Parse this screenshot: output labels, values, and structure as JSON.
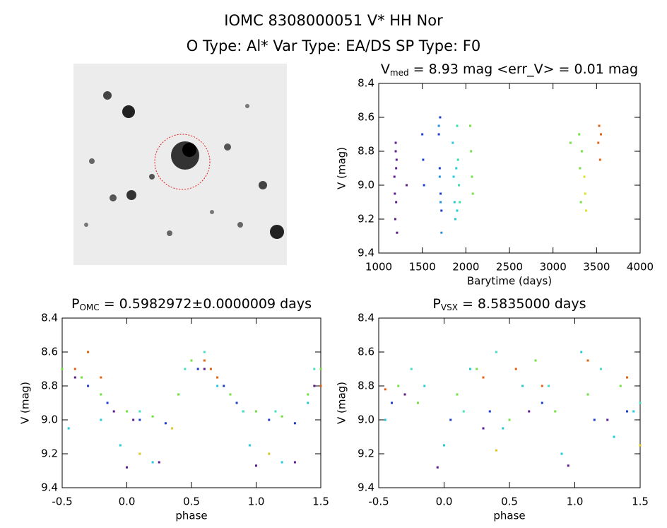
{
  "header": {
    "title": "IOMC 8308000051   V* HH Nor",
    "subtitle": "O Type: Al*  Var Type: EA/DS  SP Type: F0"
  },
  "chart_data": [
    {
      "type": "scatter",
      "title": {
        "main": "V",
        "sub": "med",
        "rest": " = 8.93 mag <err_V> = 0.01 mag"
      },
      "x_label": "Barytime (days)",
      "y_label": "V (mag)",
      "xlim": [
        1000,
        4000
      ],
      "xticks": [
        1000,
        1500,
        2000,
        2500,
        3000,
        3500,
        4000
      ],
      "ylim": [
        9.4,
        8.4
      ],
      "yticks": [
        8.4,
        8.6,
        8.8,
        {
          "value": 9,
          "label": "9.0"
        },
        9.2,
        9.4
      ],
      "series": [
        {
          "color": "#5a1a8a",
          "x": [
            1180,
            1185,
            1190,
            1195,
            1200,
            1205,
            1210,
            1200,
            1195,
            1320
          ],
          "values": [
            8.95,
            9.05,
            9.2,
            8.75,
            8.9,
            8.85,
            9.28,
            9.1,
            8.8,
            9.0
          ]
        },
        {
          "color": "#1a3cc8",
          "x": [
            1500,
            1510,
            1520,
            1690,
            1700,
            1710,
            1720,
            1705
          ],
          "values": [
            8.7,
            8.85,
            9.0,
            8.7,
            8.9,
            9.05,
            9.15,
            8.6
          ]
        },
        {
          "color": "#1f8fe0",
          "x": [
            1690,
            1700,
            1710,
            1720
          ],
          "values": [
            8.65,
            8.95,
            9.1,
            9.28
          ]
        },
        {
          "color": "#20c8d8",
          "x": [
            1850,
            1860,
            1870,
            1880,
            1890,
            1900
          ],
          "values": [
            8.75,
            8.95,
            9.1,
            9.2,
            8.9,
            9.15
          ]
        },
        {
          "color": "#30e0a0",
          "x": [
            1900,
            1910,
            1920,
            1930
          ],
          "values": [
            8.65,
            8.85,
            9.0,
            9.1
          ]
        },
        {
          "color": "#70e040",
          "x": [
            2050,
            2060,
            2070,
            2080,
            3200,
            3300,
            3310,
            3320,
            3330
          ],
          "values": [
            8.65,
            8.8,
            8.95,
            9.05,
            8.75,
            8.7,
            8.9,
            9.1,
            8.8
          ]
        },
        {
          "color": "#e0e020",
          "x": [
            3360,
            3370,
            3380
          ],
          "values": [
            8.95,
            9.05,
            9.15
          ]
        },
        {
          "color": "#e06010",
          "x": [
            3520,
            3530,
            3540,
            3550
          ],
          "values": [
            8.75,
            8.65,
            8.85,
            8.7
          ]
        }
      ]
    },
    {
      "type": "scatter",
      "title": {
        "main": "P",
        "sub": "OMC",
        "rest": " = 0.5982972±0.0000009 days"
      },
      "x_label": "phase",
      "y_label": "V (mag)",
      "xlim": [
        -0.5,
        1.5
      ],
      "xticks": [
        -0.5,
        {
          "value": 0,
          "label": "0.0"
        },
        0.5,
        {
          "value": 1,
          "label": "1.0"
        },
        1.5
      ],
      "ylim": [
        9.4,
        8.4
      ],
      "yticks": [
        8.4,
        8.6,
        8.8,
        {
          "value": 9,
          "label": "9.0"
        },
        9.2,
        9.4
      ],
      "series": [
        {
          "color": "#5a1a8a",
          "x": [
            -0.4,
            -0.1,
            0.0,
            0.05,
            0.25,
            0.6,
            0.9,
            1.0,
            1.3,
            1.45
          ],
          "values": [
            8.75,
            8.95,
            9.28,
            9.0,
            9.25,
            8.7,
            8.95,
            9.27,
            9.25,
            8.8
          ]
        },
        {
          "color": "#1a3cc8",
          "x": [
            -0.3,
            -0.15,
            0.1,
            0.3,
            0.55,
            0.75,
            0.85,
            1.1,
            1.3
          ],
          "values": [
            8.8,
            8.9,
            9.0,
            9.02,
            8.7,
            8.8,
            8.9,
            9.0,
            9.02
          ]
        },
        {
          "color": "#20c8d8",
          "x": [
            -0.45,
            -0.2,
            -0.05,
            0.1,
            0.2,
            0.4,
            0.7,
            0.95,
            1.1,
            1.2,
            1.4
          ],
          "values": [
            9.05,
            9.0,
            9.15,
            9.2,
            9.25,
            8.85,
            8.8,
            9.15,
            9.2,
            9.25,
            8.9
          ]
        },
        {
          "color": "#70e040",
          "x": [
            -0.5,
            -0.35,
            -0.2,
            0.0,
            0.2,
            0.4,
            0.5,
            0.65,
            0.8,
            1.0,
            1.2,
            1.4,
            1.5
          ],
          "values": [
            8.7,
            8.75,
            8.85,
            8.95,
            8.98,
            8.85,
            8.65,
            8.7,
            8.85,
            8.95,
            8.98,
            8.85,
            8.7
          ]
        },
        {
          "color": "#40e0c0",
          "x": [
            -0.3,
            0.1,
            0.45,
            0.6,
            0.9,
            1.15,
            1.45
          ],
          "values": [
            8.6,
            8.95,
            8.7,
            8.6,
            8.95,
            8.95,
            8.7
          ]
        },
        {
          "color": "#e0c820",
          "x": [
            0.1,
            0.35,
            1.1
          ],
          "values": [
            9.2,
            9.05,
            9.2
          ]
        },
        {
          "color": "#e06010",
          "x": [
            -0.4,
            -0.3,
            -0.2,
            0.6,
            0.65,
            0.7,
            1.5
          ],
          "values": [
            8.7,
            8.6,
            8.75,
            8.65,
            8.7,
            8.75,
            8.8
          ]
        }
      ]
    },
    {
      "type": "scatter",
      "title": {
        "main": "P",
        "sub": "VSX",
        "rest": " = 8.5835000 days"
      },
      "x_label": "phase",
      "y_label": "V (mag)",
      "xlim": [
        -0.5,
        1.5
      ],
      "xticks": [
        -0.5,
        {
          "value": 0,
          "label": "0.0"
        },
        0.5,
        {
          "value": 1,
          "label": "1.0"
        },
        1.5
      ],
      "ylim": [
        9.4,
        8.4
      ],
      "yticks": [
        8.4,
        8.6,
        8.8,
        {
          "value": 9,
          "label": "9.0"
        },
        9.2,
        9.4
      ],
      "series": [
        {
          "color": "#5a1a8a",
          "x": [
            -0.3,
            -0.05,
            0.3,
            0.65,
            0.95,
            1.25
          ],
          "values": [
            8.85,
            9.28,
            9.05,
            8.95,
            9.27,
            9.0
          ]
        },
        {
          "color": "#1a3cc8",
          "x": [
            -0.4,
            0.05,
            0.35,
            0.75,
            1.15,
            1.4
          ],
          "values": [
            8.9,
            9.0,
            8.95,
            8.9,
            9.0,
            8.95
          ]
        },
        {
          "color": "#20c8d8",
          "x": [
            -0.45,
            -0.15,
            0.0,
            0.2,
            0.45,
            0.6,
            0.9,
            1.05,
            1.3,
            1.45
          ],
          "values": [
            9.0,
            8.8,
            9.15,
            8.7,
            9.05,
            8.8,
            9.2,
            8.6,
            9.1,
            8.95
          ]
        },
        {
          "color": "#70e040",
          "x": [
            -0.35,
            -0.2,
            0.1,
            0.25,
            0.5,
            0.7,
            0.85,
            1.1,
            1.35
          ],
          "values": [
            8.8,
            8.9,
            8.85,
            8.7,
            9.0,
            8.65,
            8.95,
            8.85,
            8.8
          ]
        },
        {
          "color": "#40e0c0",
          "x": [
            -0.25,
            0.15,
            0.4,
            0.8,
            1.2,
            1.5
          ],
          "values": [
            8.7,
            8.95,
            8.6,
            8.8,
            8.7,
            8.9
          ]
        },
        {
          "color": "#e0c820",
          "x": [
            0.4,
            1.5
          ],
          "values": [
            9.18,
            9.15
          ]
        },
        {
          "color": "#e06010",
          "x": [
            -0.45,
            0.3,
            0.55,
            0.75,
            1.1,
            1.4
          ],
          "values": [
            8.82,
            8.75,
            8.7,
            8.8,
            8.65,
            8.75
          ]
        }
      ]
    }
  ]
}
